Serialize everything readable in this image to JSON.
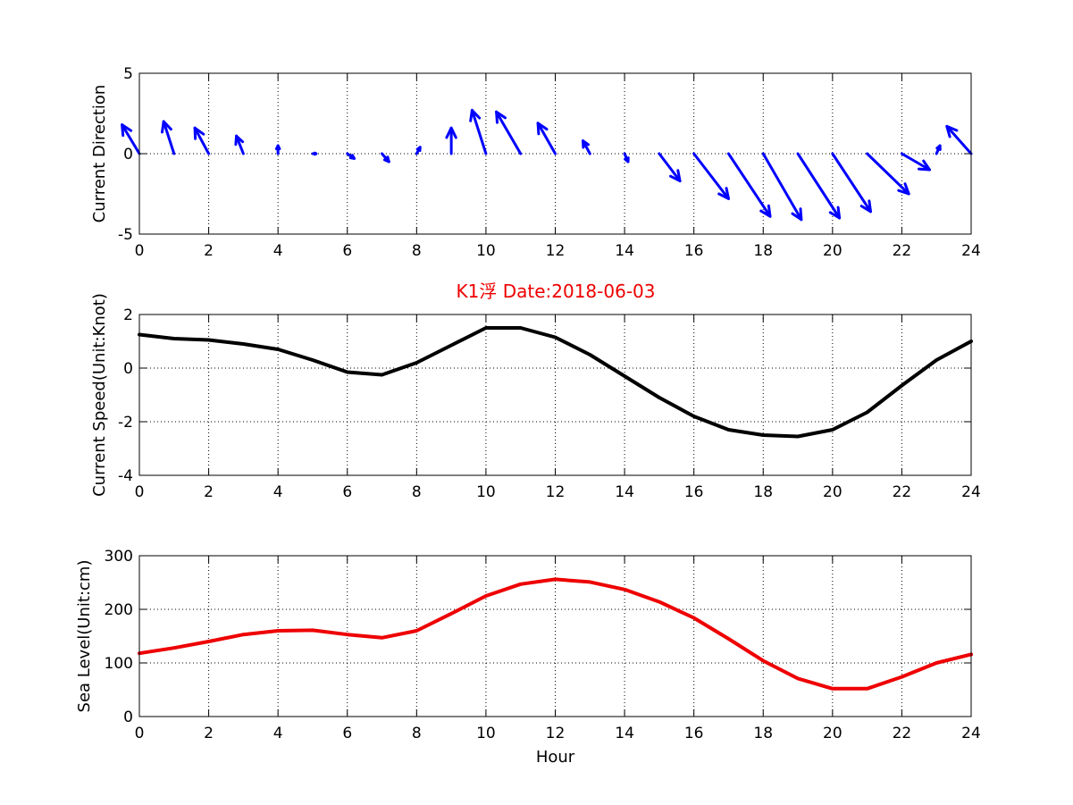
{
  "title": "K1浮   Date:2018-06-03",
  "title_color": "#ee0000",
  "chart_data": [
    {
      "type": "quiver",
      "ylabel": "Current Direction",
      "xlabel": "",
      "xlim": [
        0,
        24
      ],
      "ylim": [
        -5,
        5
      ],
      "xticks": [
        0,
        2,
        4,
        6,
        8,
        10,
        12,
        14,
        16,
        18,
        20,
        22,
        24
      ],
      "yticks": [
        -5,
        0,
        5
      ],
      "grid": true,
      "color": "#0000ff",
      "x": [
        0,
        1,
        2,
        3,
        4,
        5,
        6,
        7,
        8,
        9,
        10,
        11,
        12,
        13,
        14,
        15,
        16,
        17,
        18,
        19,
        20,
        21,
        22,
        23,
        24
      ],
      "u": [
        -0.5,
        -0.3,
        -0.4,
        -0.2,
        0,
        0.1,
        0.2,
        0.2,
        0.1,
        0,
        -0.4,
        -0.7,
        -0.5,
        -0.2,
        0.1,
        0.6,
        1.0,
        1.2,
        1.1,
        1.2,
        1.1,
        1.2,
        0.8,
        0.1,
        -0.7
      ],
      "v": [
        1.8,
        2.0,
        1.6,
        1.1,
        0.5,
        0,
        -0.3,
        -0.5,
        0.4,
        1.6,
        2.7,
        2.6,
        1.9,
        0.8,
        -0.5,
        -1.7,
        -2.8,
        -3.9,
        -4.1,
        -4.0,
        -3.6,
        -2.5,
        -1.0,
        0.5,
        1.7
      ]
    },
    {
      "type": "line",
      "ylabel": "Current Speed(Unit:Knot)",
      "xlabel": "",
      "xlim": [
        0,
        24
      ],
      "ylim": [
        -4,
        2
      ],
      "xticks": [
        0,
        2,
        4,
        6,
        8,
        10,
        12,
        14,
        16,
        18,
        20,
        22,
        24
      ],
      "yticks": [
        -4,
        -2,
        0,
        2
      ],
      "grid": true,
      "color": "#000000",
      "x": [
        0,
        1,
        2,
        3,
        4,
        5,
        6,
        7,
        8,
        9,
        10,
        11,
        12,
        13,
        14,
        15,
        16,
        17,
        18,
        19,
        20,
        21,
        22,
        23,
        24
      ],
      "y": [
        1.25,
        1.1,
        1.05,
        0.9,
        0.7,
        0.3,
        -0.15,
        -0.25,
        0.2,
        0.85,
        1.5,
        1.5,
        1.15,
        0.5,
        -0.3,
        -1.1,
        -1.8,
        -2.3,
        -2.5,
        -2.55,
        -2.3,
        -1.65,
        -0.65,
        0.3,
        1.0
      ]
    },
    {
      "type": "line",
      "ylabel": "Sea Level(Unit:cm)",
      "xlabel": "Hour",
      "xlim": [
        0,
        24
      ],
      "ylim": [
        0,
        300
      ],
      "xticks": [
        0,
        2,
        4,
        6,
        8,
        10,
        12,
        14,
        16,
        18,
        20,
        22,
        24
      ],
      "yticks": [
        0,
        100,
        200,
        300
      ],
      "grid": true,
      "color": "#ee0000",
      "x": [
        0,
        1,
        2,
        3,
        4,
        5,
        6,
        7,
        8,
        9,
        10,
        11,
        12,
        13,
        14,
        15,
        16,
        17,
        18,
        19,
        20,
        21,
        22,
        23,
        24
      ],
      "y": [
        118,
        128,
        140,
        153,
        160,
        161,
        153,
        147,
        160,
        192,
        225,
        247,
        256,
        251,
        237,
        214,
        184,
        145,
        104,
        71,
        52,
        52,
        74,
        100,
        116
      ]
    }
  ]
}
